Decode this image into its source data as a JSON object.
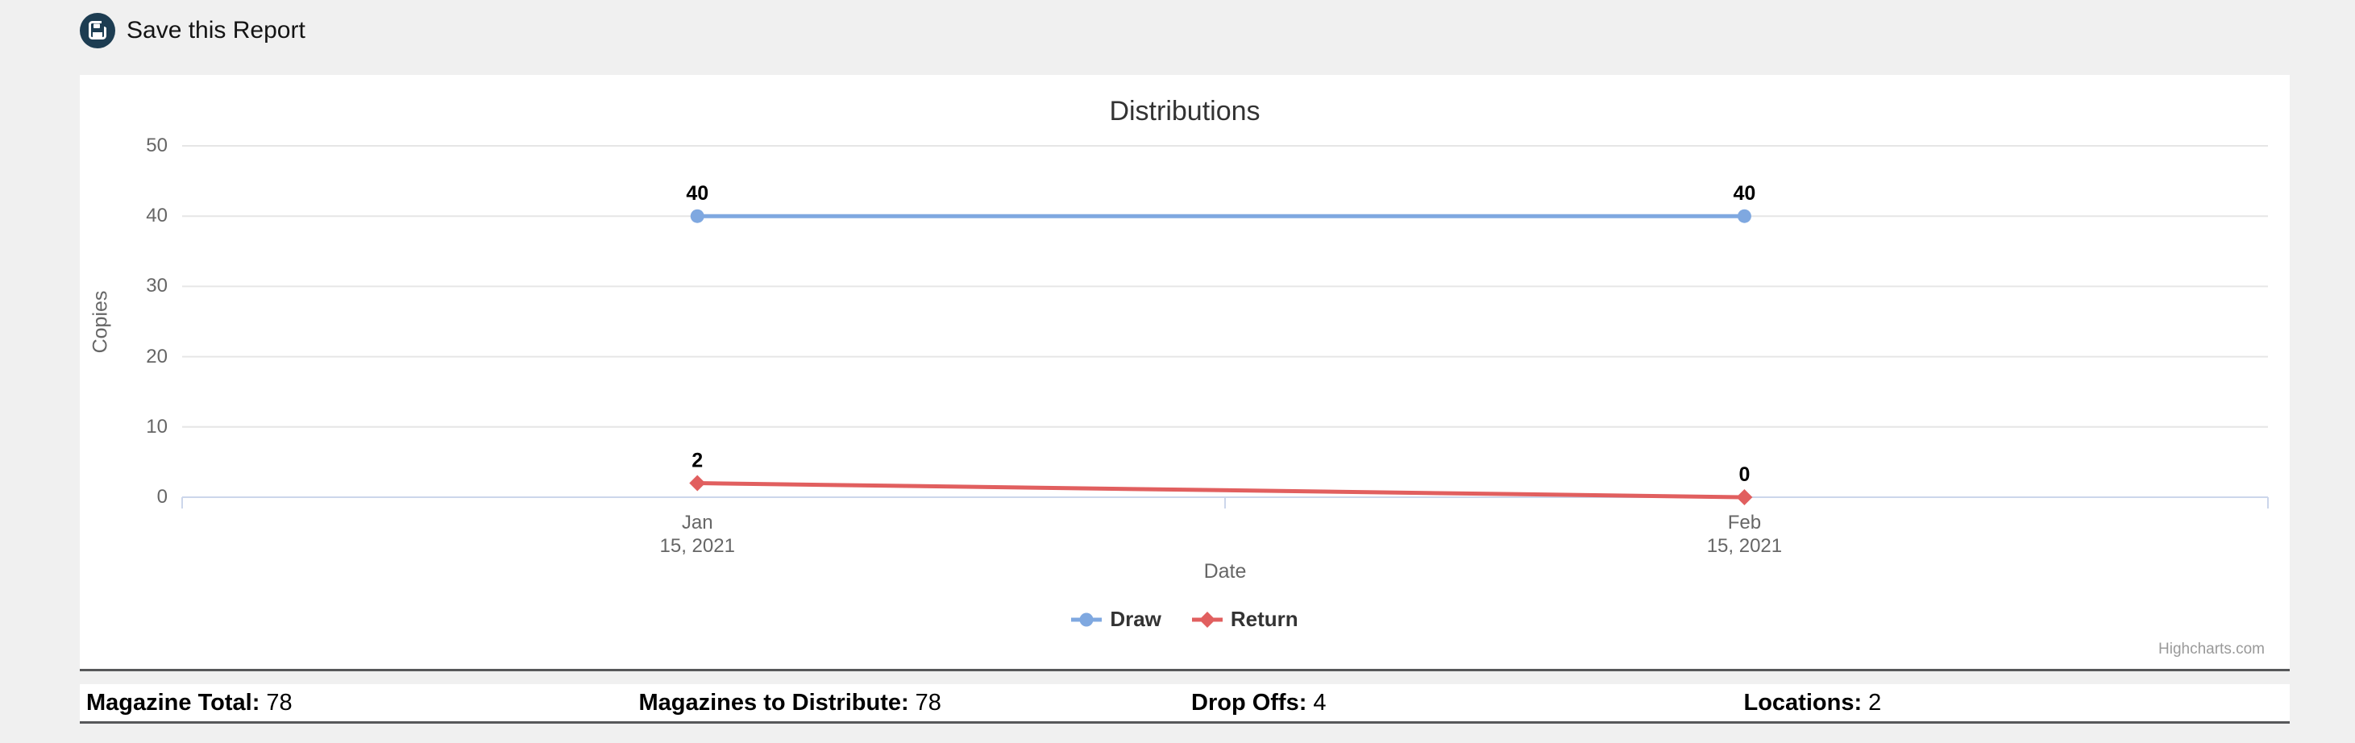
{
  "header": {
    "save_label": "Save this Report",
    "save_icon": "save-icon",
    "icon_bg_color": "#1d3d52"
  },
  "chart_data": {
    "type": "line",
    "title": "Distributions",
    "xlabel": "Date",
    "ylabel": "Copies",
    "categories": [
      "Jan 15, 2021",
      "Feb 15, 2021"
    ],
    "x_tick_labels": [
      "Jan\n15, 2021",
      "Feb\n15, 2021"
    ],
    "series": [
      {
        "name": "Draw",
        "color": "#7fa8e0",
        "marker": "circle",
        "values": [
          40,
          40
        ]
      },
      {
        "name": "Return",
        "color": "#e15f5f",
        "marker": "diamond",
        "values": [
          2,
          0
        ]
      }
    ],
    "ylim": [
      0,
      50
    ],
    "yticks": [
      0,
      10,
      20,
      30,
      40,
      50
    ],
    "grid": true,
    "legend_position": "bottom",
    "x_positions_pct": [
      24.7,
      74.9
    ],
    "axis_tick_positions_pct": [
      0,
      50,
      100
    ],
    "grid_color": "#e6e6e6",
    "axis_color": "#ccd6eb",
    "data_label_color": "#000000",
    "credits": "Highcharts.com"
  },
  "footer": {
    "items": [
      {
        "label": "Magazine Total:",
        "value": "78"
      },
      {
        "label": "Magazines to Distribute:",
        "value": "78"
      },
      {
        "label": "Drop Offs:",
        "value": "4"
      },
      {
        "label": "Locations:",
        "value": "2"
      }
    ]
  }
}
